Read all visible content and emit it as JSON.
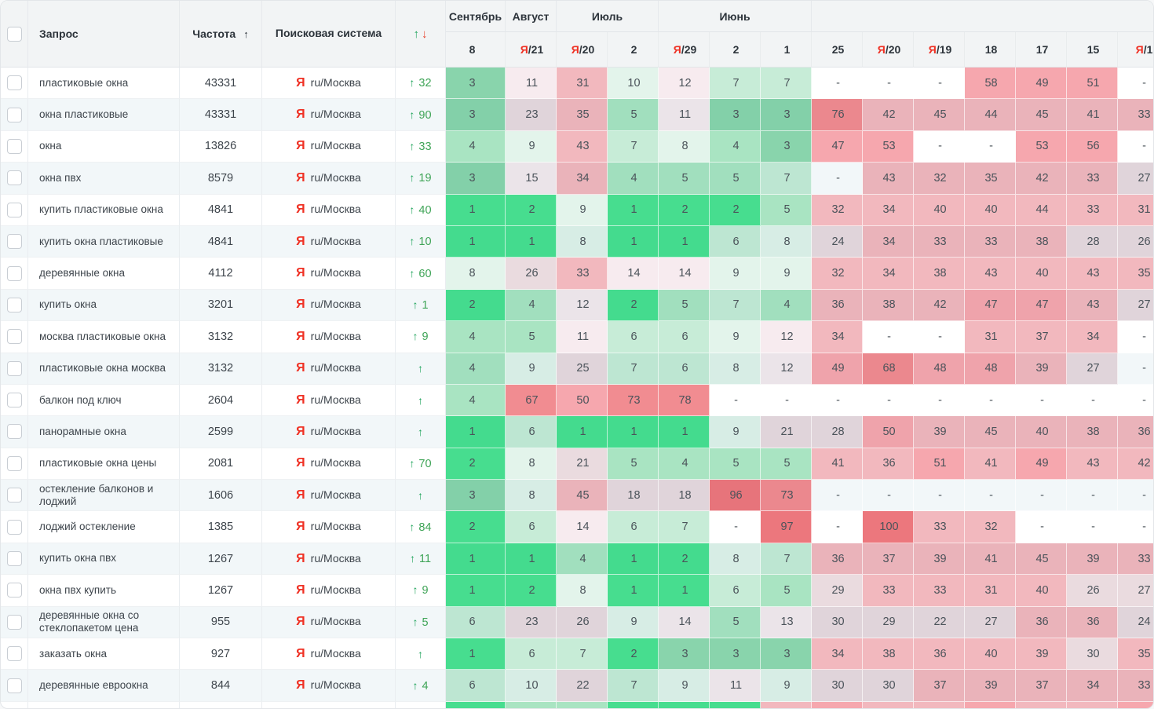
{
  "header": {
    "col_query": "Запрос",
    "col_frequency": "Частота",
    "freq_sort_icon": "↑",
    "col_engine": "Поисковая система",
    "trend_up_icon": "↑",
    "trend_down_icon": "↓",
    "month_groups": [
      {
        "label": "Сентябрь",
        "span": 1
      },
      {
        "label": "Август",
        "span": 1
      },
      {
        "label": "Июль",
        "span": 2
      },
      {
        "label": "Июнь",
        "span": 3
      },
      {
        "label": "",
        "span": 7
      }
    ],
    "date_columns": [
      "8",
      "Я/21",
      "Я/20",
      "2",
      "Я/29",
      "2",
      "1",
      "25",
      "Я/20",
      "Я/19",
      "18",
      "17",
      "15",
      "Я/1"
    ]
  },
  "engine": {
    "icon": "Я",
    "label": "ru/Москва"
  },
  "colors": {
    "yandex_red": "#ef3124",
    "trend_green": "#1fa45b",
    "trend_red": "#e8432d",
    "row_tint": "#f2f7f9",
    "header_bg": "#f2f4f5"
  },
  "rows": [
    {
      "query": "пластиковые окна",
      "frequency": "43331",
      "trend": "32",
      "positions": [
        3,
        11,
        31,
        10,
        12,
        7,
        7,
        "-",
        "-",
        "-",
        58,
        49,
        51,
        "-"
      ]
    },
    {
      "query": "окна пластиковые",
      "frequency": "43331",
      "trend": "90",
      "positions": [
        3,
        23,
        35,
        5,
        11,
        3,
        3,
        76,
        42,
        45,
        44,
        45,
        41,
        33
      ]
    },
    {
      "query": "окна",
      "frequency": "13826",
      "trend": "33",
      "positions": [
        4,
        9,
        43,
        7,
        8,
        4,
        3,
        47,
        53,
        "-",
        "-",
        53,
        56,
        "-"
      ]
    },
    {
      "query": "окна пвх",
      "frequency": "8579",
      "trend": "19",
      "positions": [
        3,
        15,
        34,
        4,
        5,
        5,
        7,
        "-",
        43,
        32,
        35,
        42,
        33,
        27
      ]
    },
    {
      "query": "купить пластиковые окна",
      "frequency": "4841",
      "trend": "40",
      "positions": [
        1,
        2,
        9,
        1,
        2,
        2,
        5,
        32,
        34,
        40,
        40,
        44,
        33,
        31
      ]
    },
    {
      "query": "купить окна пластиковые",
      "frequency": "4841",
      "trend": "10",
      "positions": [
        1,
        1,
        8,
        1,
        1,
        6,
        8,
        24,
        34,
        33,
        33,
        38,
        28,
        26
      ]
    },
    {
      "query": "деревянные окна",
      "frequency": "4112",
      "trend": "60",
      "positions": [
        8,
        26,
        33,
        14,
        14,
        9,
        9,
        32,
        34,
        38,
        43,
        40,
        43,
        35
      ]
    },
    {
      "query": "купить окна",
      "frequency": "3201",
      "trend": "1",
      "positions": [
        2,
        4,
        12,
        2,
        5,
        7,
        4,
        36,
        38,
        42,
        47,
        47,
        43,
        27
      ]
    },
    {
      "query": "москва пластиковые окна",
      "frequency": "3132",
      "trend": "9",
      "positions": [
        4,
        5,
        11,
        6,
        6,
        9,
        12,
        34,
        "-",
        "-",
        31,
        37,
        34,
        "-"
      ]
    },
    {
      "query": "пластиковые окна москва",
      "frequency": "3132",
      "trend": "",
      "positions": [
        4,
        9,
        25,
        7,
        6,
        8,
        12,
        49,
        68,
        48,
        48,
        39,
        27,
        "-"
      ]
    },
    {
      "query": "балкон под ключ",
      "frequency": "2604",
      "trend": "",
      "positions": [
        4,
        67,
        50,
        73,
        78,
        "-",
        "-",
        "-",
        "-",
        "-",
        "-",
        "-",
        "-",
        "-"
      ]
    },
    {
      "query": "панорамные окна",
      "frequency": "2599",
      "trend": "",
      "positions": [
        1,
        6,
        1,
        1,
        1,
        9,
        21,
        28,
        50,
        39,
        45,
        40,
        38,
        36
      ]
    },
    {
      "query": "пластиковые окна цены",
      "frequency": "2081",
      "trend": "70",
      "positions": [
        2,
        8,
        21,
        5,
        4,
        5,
        5,
        41,
        36,
        51,
        41,
        49,
        43,
        42
      ]
    },
    {
      "query": "остекление балконов и лоджий",
      "frequency": "1606",
      "trend": "",
      "positions": [
        3,
        8,
        45,
        18,
        18,
        96,
        73,
        "-",
        "-",
        "-",
        "-",
        "-",
        "-",
        "-"
      ]
    },
    {
      "query": "лоджий остекление",
      "frequency": "1385",
      "trend": "84",
      "positions": [
        2,
        6,
        14,
        6,
        7,
        "-",
        97,
        "-",
        100,
        33,
        32,
        "-",
        "-",
        "-"
      ]
    },
    {
      "query": "купить окна пвх",
      "frequency": "1267",
      "trend": "11",
      "positions": [
        1,
        1,
        4,
        1,
        2,
        8,
        7,
        36,
        37,
        39,
        41,
        45,
        39,
        33
      ]
    },
    {
      "query": "окна пвх купить",
      "frequency": "1267",
      "trend": "9",
      "positions": [
        1,
        2,
        8,
        1,
        1,
        6,
        5,
        29,
        33,
        33,
        31,
        40,
        26,
        27
      ]
    },
    {
      "query": "деревянные окна со стеклопакетом цена",
      "frequency": "955",
      "trend": "5",
      "positions": [
        6,
        23,
        26,
        9,
        14,
        5,
        13,
        30,
        29,
        22,
        27,
        36,
        36,
        24
      ]
    },
    {
      "query": "заказать окна",
      "frequency": "927",
      "trend": "",
      "positions": [
        1,
        6,
        7,
        2,
        3,
        3,
        3,
        34,
        38,
        36,
        40,
        39,
        30,
        35
      ]
    },
    {
      "query": "деревянные евроокна",
      "frequency": "844",
      "trend": "4",
      "positions": [
        6,
        10,
        22,
        7,
        9,
        11,
        9,
        30,
        30,
        37,
        39,
        37,
        34,
        33
      ]
    }
  ],
  "partial_row_tones": [
    "h-g1",
    "h-g3",
    "h-g3",
    "h-g1",
    "h-g1",
    "h-g1",
    "h-p3",
    "h-p4",
    "h-p3",
    "h-p3",
    "h-p4",
    "h-p3",
    "h-p3",
    "h-p4"
  ]
}
